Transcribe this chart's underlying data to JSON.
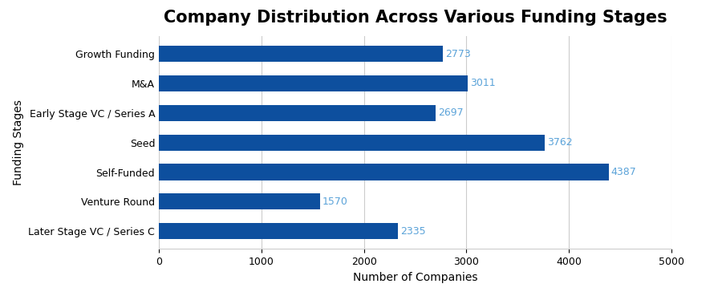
{
  "title": "Company Distribution Across Various Funding Stages",
  "xlabel": "Number of Companies",
  "ylabel": "Funding Stages",
  "categories": [
    "Growth Funding",
    "M&A",
    "Early Stage VC / Series A",
    "Seed",
    "Self-Funded",
    "Venture Round",
    "Later Stage VC / Series C"
  ],
  "values": [
    2773,
    3011,
    2697,
    3762,
    4387,
    1570,
    2335
  ],
  "bar_color": "#0d4f9e",
  "label_color": "#5ba3d9",
  "xlim": [
    0,
    5000
  ],
  "xticks": [
    0,
    1000,
    2000,
    3000,
    4000,
    5000
  ],
  "background_color": "#ffffff",
  "grid_color": "#cccccc",
  "title_fontsize": 15,
  "label_fontsize": 10,
  "tick_fontsize": 9,
  "value_fontsize": 9,
  "bar_height": 0.55
}
